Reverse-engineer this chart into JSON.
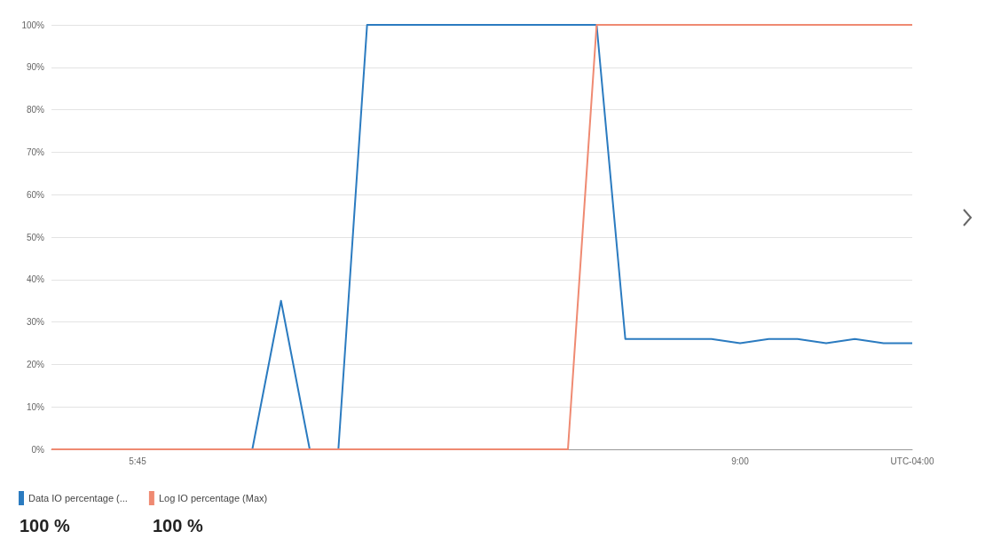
{
  "chart_data": {
    "type": "line",
    "categories": [
      null,
      null,
      null,
      "5:45",
      null,
      null,
      null,
      null,
      null,
      null,
      null,
      null,
      null,
      null,
      null,
      null,
      null,
      null,
      null,
      null,
      null,
      null,
      null,
      null,
      "9:00",
      null,
      null,
      null,
      null,
      null,
      "UTC-04:00"
    ],
    "series": [
      {
        "name": "Data IO percentage (...",
        "color": "#2b7bc0",
        "values": [
          null,
          null,
          null,
          null,
          null,
          null,
          null,
          0,
          35,
          0,
          0,
          100,
          100,
          100,
          100,
          100,
          100,
          100,
          100,
          100,
          26,
          26,
          26,
          26,
          25,
          26,
          26,
          25,
          26,
          25,
          25
        ]
      },
      {
        "name": "Log IO percentage (Max)",
        "color": "#ef8a72",
        "values": [
          0,
          0,
          0,
          0,
          0,
          0,
          0,
          0,
          0,
          0,
          0,
          0,
          0,
          0,
          0,
          0,
          0,
          0,
          0,
          100,
          100,
          100,
          100,
          100,
          100,
          100,
          100,
          100,
          100,
          100,
          100
        ]
      }
    ],
    "ylim": [
      0,
      100
    ],
    "yticks": [
      {
        "value": 0,
        "label": "0%"
      },
      {
        "value": 10,
        "label": "10%"
      },
      {
        "value": 20,
        "label": "20%"
      },
      {
        "value": 30,
        "label": "30%"
      },
      {
        "value": 40,
        "label": "40%"
      },
      {
        "value": 50,
        "label": "50%"
      },
      {
        "value": 60,
        "label": "60%"
      },
      {
        "value": 70,
        "label": "70%"
      },
      {
        "value": 80,
        "label": "80%"
      },
      {
        "value": 90,
        "label": "90%"
      },
      {
        "value": 100,
        "label": "100%"
      }
    ],
    "grid": "y",
    "legend": "bottom left",
    "marker": "none",
    "line_style": "solid",
    "annotations": [
      "100 %",
      "100 %"
    ]
  }
}
